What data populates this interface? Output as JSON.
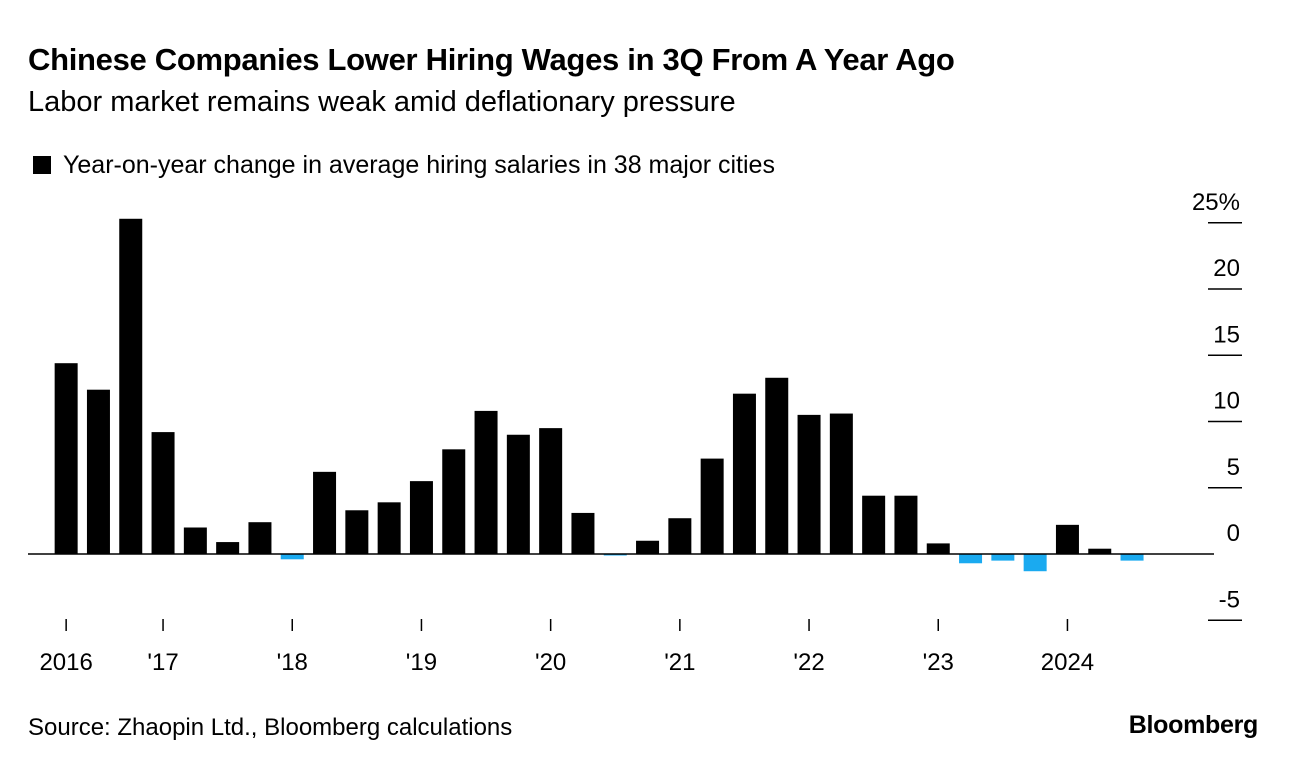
{
  "title": "Chinese Companies Lower Hiring Wages in 3Q From A Year Ago",
  "subtitle": "Labor market remains weak amid deflationary pressure",
  "footer": {
    "source": "Source: Zhaopin Ltd., Bloomberg calculations",
    "brand": "Bloomberg"
  },
  "colors": {
    "positive": "#000000",
    "negative": "#1aaaf0",
    "axis": "#000000"
  },
  "chart_data": {
    "type": "bar",
    "legend_position": "top-left",
    "grid": false,
    "series": [
      {
        "name": "Year-on-year change in average hiring salaries in 38 major cities",
        "values": [
          14.4,
          12.4,
          25.3,
          9.2,
          2.0,
          0.9,
          2.4,
          -0.4,
          6.2,
          3.3,
          3.9,
          5.5,
          7.9,
          10.8,
          9.0,
          9.5,
          3.1,
          -0.1,
          1.0,
          2.7,
          7.2,
          12.1,
          13.3,
          10.5,
          10.6,
          4.4,
          4.4,
          0.8,
          -0.7,
          -0.5,
          -1.3,
          2.2,
          0.4,
          -0.5
        ]
      }
    ],
    "y_ticks": [
      {
        "value": 25,
        "label": "25%"
      },
      {
        "value": 20,
        "label": "20"
      },
      {
        "value": 15,
        "label": "15"
      },
      {
        "value": 10,
        "label": "10"
      },
      {
        "value": 5,
        "label": "5"
      },
      {
        "value": 0,
        "label": "0"
      },
      {
        "value": -5,
        "label": "-5"
      }
    ],
    "x_ticks": [
      {
        "index": 0,
        "label": "2016"
      },
      {
        "index": 3,
        "label": "'17"
      },
      {
        "index": 7,
        "label": "'18"
      },
      {
        "index": 11,
        "label": "'19"
      },
      {
        "index": 15,
        "label": "'20"
      },
      {
        "index": 19,
        "label": "'21"
      },
      {
        "index": 23,
        "label": "'22"
      },
      {
        "index": 27,
        "label": "'23"
      },
      {
        "index": 31,
        "label": "2024"
      }
    ],
    "ylim": [
      -5,
      25
    ],
    "xlabel": "",
    "ylabel": ""
  }
}
